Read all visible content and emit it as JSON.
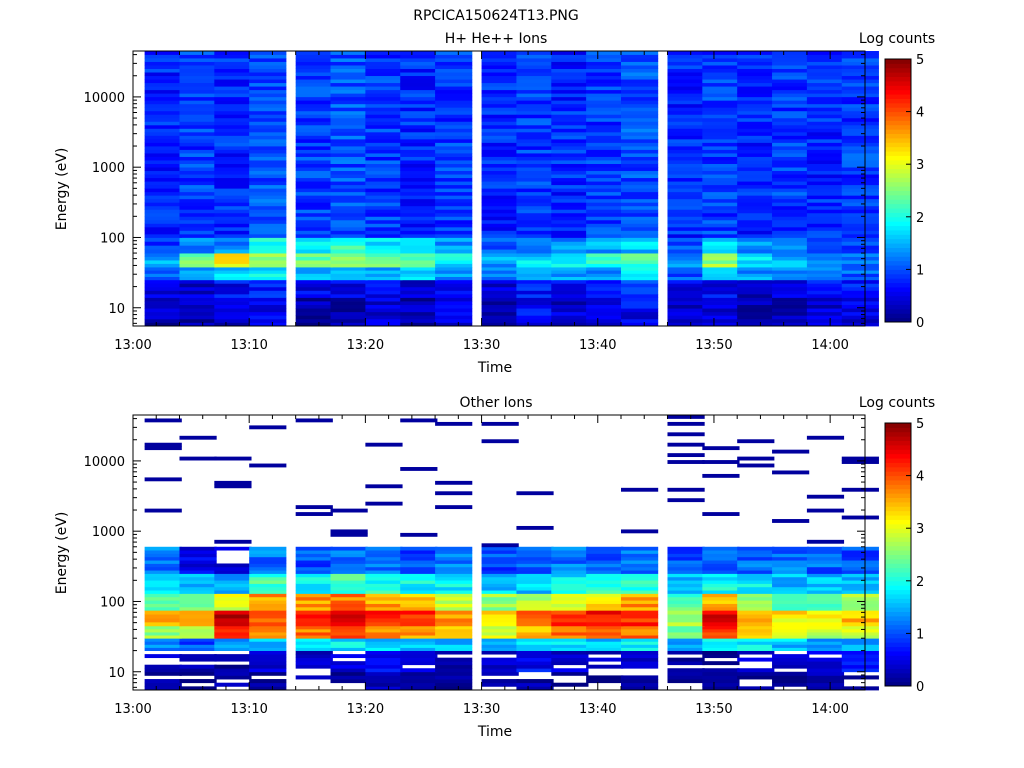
{
  "figure": {
    "title": "RPCICA150624T13.PNG"
  },
  "chart_data": [
    {
      "type": "heatmap",
      "title": "H+ He++ Ions",
      "xlabel": "Time",
      "ylabel": "Energy (eV)",
      "yscale": "log",
      "xlim": [
        "13:00",
        "14:03"
      ],
      "ylim": [
        5.5,
        45000
      ],
      "xticks": [
        "13:00",
        "13:10",
        "13:20",
        "13:30",
        "13:40",
        "13:50",
        "14:00"
      ],
      "yticks": [
        "10",
        "100",
        "1000",
        "10000"
      ],
      "colorbar": {
        "label": "Log counts",
        "ticks": [
          "0",
          "1",
          "2",
          "3",
          "4",
          "5"
        ],
        "range": [
          0,
          5
        ],
        "colormap": "jet"
      },
      "time_bins_start": [
        "13:01",
        "13:04",
        "13:07",
        "13:10",
        "13:14",
        "13:17",
        "13:20",
        "13:23",
        "13:26",
        "13:30",
        "13:33",
        "13:36",
        "13:39",
        "13:42",
        "13:46",
        "13:49",
        "13:52",
        "13:55",
        "13:58",
        "14:01"
      ],
      "energy_profile": [
        {
          "emin": 5.5,
          "emax": 14,
          "log_counts": [
            0.3,
            0.2,
            0.4,
            0.6,
            0.2,
            0.3,
            0.4,
            0.2,
            0.5,
            0.3,
            0.6,
            0.4,
            0.5,
            0.6,
            0.3,
            0.4,
            0.2,
            0.3,
            0.4,
            0.5
          ]
        },
        {
          "emin": 14,
          "emax": 25,
          "log_counts": [
            0.5,
            0.4,
            0.6,
            0.7,
            0.5,
            0.5,
            0.6,
            0.4,
            0.7,
            0.5,
            0.7,
            0.6,
            0.6,
            0.8,
            0.5,
            0.6,
            0.4,
            0.5,
            0.6,
            0.7
          ]
        },
        {
          "emin": 25,
          "emax": 38,
          "log_counts": [
            1.0,
            1.4,
            1.6,
            1.8,
            1.6,
            1.7,
            1.5,
            1.6,
            1.4,
            1.2,
            1.6,
            1.4,
            1.4,
            1.8,
            1.0,
            1.8,
            1.4,
            1.3,
            1.2,
            1.1
          ]
        },
        {
          "emin": 38,
          "emax": 60,
          "log_counts": [
            1.4,
            2.4,
            3.2,
            2.6,
            2.4,
            2.6,
            2.3,
            2.4,
            1.8,
            1.4,
            1.7,
            1.9,
            2.0,
            2.2,
            1.4,
            2.6,
            1.8,
            1.5,
            1.3,
            1.2
          ]
        },
        {
          "emin": 60,
          "emax": 100,
          "log_counts": [
            0.9,
            1.2,
            1.3,
            2.0,
            1.8,
            2.1,
            1.8,
            1.6,
            1.3,
            1.1,
            1.2,
            1.3,
            1.4,
            1.6,
            1.0,
            1.8,
            1.4,
            1.2,
            1.0,
            1.0
          ]
        },
        {
          "emin": 100,
          "emax": 45000,
          "log_counts": [
            0.8,
            0.9,
            0.8,
            1.0,
            0.9,
            1.0,
            0.9,
            0.8,
            0.9,
            0.8,
            0.9,
            0.8,
            0.9,
            1.0,
            0.8,
            0.9,
            0.8,
            0.9,
            0.8,
            0.9
          ]
        }
      ]
    },
    {
      "type": "heatmap",
      "title": "Other Ions",
      "xlabel": "Time",
      "ylabel": "Energy (eV)",
      "yscale": "log",
      "xlim": [
        "13:00",
        "14:03"
      ],
      "ylim": [
        5.5,
        45000
      ],
      "xticks": [
        "13:00",
        "13:10",
        "13:20",
        "13:30",
        "13:40",
        "13:50",
        "14:00"
      ],
      "yticks": [
        "10",
        "100",
        "1000",
        "10000"
      ],
      "colorbar": {
        "label": "Log counts",
        "ticks": [
          "0",
          "1",
          "2",
          "3",
          "4",
          "5"
        ],
        "range": [
          0,
          5
        ],
        "colormap": "jet"
      },
      "time_bins_start": [
        "13:01",
        "13:04",
        "13:07",
        "13:10",
        "13:14",
        "13:17",
        "13:20",
        "13:23",
        "13:26",
        "13:30",
        "13:33",
        "13:36",
        "13:39",
        "13:42",
        "13:46",
        "13:49",
        "13:52",
        "13:55",
        "13:58",
        "14:01"
      ],
      "energy_profile": [
        {
          "emin": 5.5,
          "emax": 10,
          "log_counts": [
            0.2,
            0.1,
            0.3,
            0.2,
            0.3,
            0.2,
            0.4,
            0.3,
            0.2,
            0.3,
            0.3,
            0.2,
            0.2,
            0.3,
            0.2,
            0.3,
            0.2,
            0.2,
            0.3,
            0.3
          ]
        },
        {
          "emin": 10,
          "emax": 20,
          "log_counts": [
            0.4,
            0.3,
            0.2,
            0.5,
            0.4,
            0.5,
            0.6,
            0.5,
            0.3,
            0.4,
            0.6,
            0.5,
            0.4,
            0.5,
            0.3,
            0.2,
            0.5,
            0.4,
            0.5,
            0.6
          ]
        },
        {
          "emin": 20,
          "emax": 30,
          "log_counts": [
            1.2,
            1.0,
            1.4,
            1.6,
            1.8,
            1.8,
            1.6,
            1.7,
            1.5,
            1.4,
            1.7,
            1.8,
            1.6,
            1.8,
            1.4,
            2.0,
            1.8,
            1.6,
            1.4,
            1.5
          ]
        },
        {
          "emin": 30,
          "emax": 45,
          "log_counts": [
            2.6,
            2.8,
            4.4,
            3.6,
            3.8,
            4.0,
            3.8,
            3.6,
            3.2,
            3.0,
            3.5,
            3.8,
            4.0,
            3.8,
            2.4,
            4.2,
            3.4,
            3.0,
            2.8,
            3.0
          ]
        },
        {
          "emin": 45,
          "emax": 75,
          "log_counts": [
            3.4,
            3.6,
            4.8,
            4.0,
            4.4,
            4.4,
            4.2,
            4.2,
            3.6,
            3.4,
            3.8,
            4.2,
            4.4,
            4.2,
            2.6,
            4.6,
            3.6,
            3.2,
            3.2,
            3.4
          ]
        },
        {
          "emin": 75,
          "emax": 130,
          "log_counts": [
            2.4,
            2.6,
            3.0,
            3.6,
            3.6,
            3.8,
            3.6,
            3.4,
            2.8,
            2.6,
            2.8,
            3.0,
            3.2,
            3.6,
            2.2,
            3.4,
            2.6,
            2.4,
            2.4,
            2.6
          ]
        },
        {
          "emin": 130,
          "emax": 250,
          "log_counts": [
            1.6,
            1.4,
            1.4,
            2.2,
            1.8,
            2.2,
            2.0,
            1.9,
            1.8,
            1.6,
            1.6,
            1.8,
            2.0,
            2.0,
            1.6,
            1.9,
            1.8,
            1.6,
            1.6,
            1.5
          ]
        },
        {
          "emin": 250,
          "emax": 600,
          "log_counts": [
            1.2,
            0.6,
            0.5,
            1.2,
            1.0,
            1.2,
            1.1,
            1.0,
            1.2,
            1.0,
            1.1,
            1.2,
            1.1,
            1.2,
            1.0,
            1.0,
            1.1,
            1.2,
            1.1,
            1.0
          ]
        },
        {
          "emin": 600,
          "emax": 45000,
          "log_counts": [
            0.2,
            0.2,
            0.2,
            0.2,
            0.2,
            0.2,
            0.2,
            0.2,
            0.2,
            0.2,
            0.2,
            0.2,
            0.2,
            0.2,
            0.2,
            0.2,
            0.2,
            0.2,
            0.2,
            0.2
          ]
        }
      ]
    }
  ]
}
